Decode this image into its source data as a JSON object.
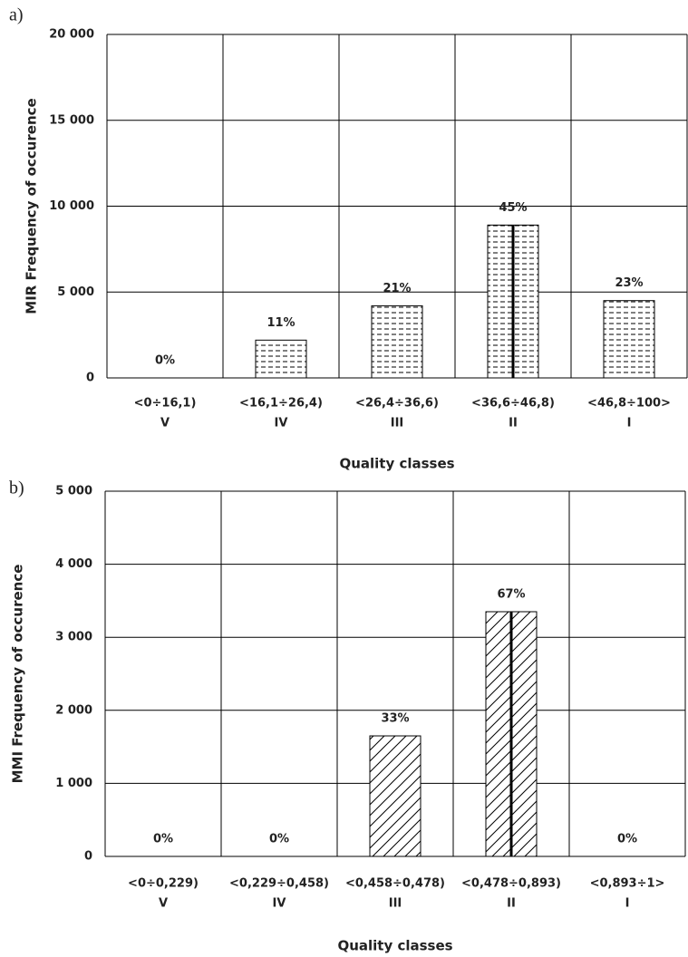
{
  "chart_data": [
    {
      "type": "bar",
      "panel_label": "a)",
      "ylabel": "MIR Frequency of occurence",
      "xlabel": "Quality classes",
      "categories": [
        "<0÷16,1)",
        "<16,1÷26,4)",
        "<26,4÷36,6)",
        "<36,6÷46,8)",
        "<46,8÷100>"
      ],
      "classes": [
        "V",
        "IV",
        "III",
        "II",
        "I"
      ],
      "values": [
        0,
        2200,
        4200,
        8900,
        4500
      ],
      "share_labels": [
        "0%",
        "11%",
        "21%",
        "45%",
        "23%"
      ],
      "color": "#000000",
      "pattern": "dashes",
      "ylim": [
        0,
        20000
      ],
      "yticks": [
        0,
        {
          "value": 5000,
          "label": "5 000"
        },
        {
          "value": 10000,
          "label": "10 000"
        },
        {
          "value": 15000,
          "label": "15 000"
        },
        {
          "value": 20000,
          "label": "20 000"
        }
      ],
      "grid": true
    },
    {
      "type": "bar",
      "panel_label": "b)",
      "ylabel": "MMI Frequency of occurence",
      "xlabel": "Quality classes",
      "categories": [
        "<0÷0,229)",
        "<0,229÷0,458)",
        "<0,458÷0,478)",
        "<0,478÷0,893)",
        "<0,893÷1>"
      ],
      "classes": [
        "V",
        "IV",
        "III",
        "II",
        "I"
      ],
      "values": [
        0,
        0,
        1650,
        3350,
        0
      ],
      "share_labels": [
        "0%",
        "0%",
        "33%",
        "67%",
        "0%"
      ],
      "color": "#000000",
      "pattern": "hatch",
      "ylim": [
        0,
        5000
      ],
      "yticks": [
        0,
        {
          "value": 1000,
          "label": "1 000"
        },
        {
          "value": 2000,
          "label": "2 000"
        },
        {
          "value": 3000,
          "label": "3 000"
        },
        {
          "value": 4000,
          "label": "4 000"
        },
        {
          "value": 5000,
          "label": "5 000"
        }
      ],
      "grid": true
    }
  ]
}
